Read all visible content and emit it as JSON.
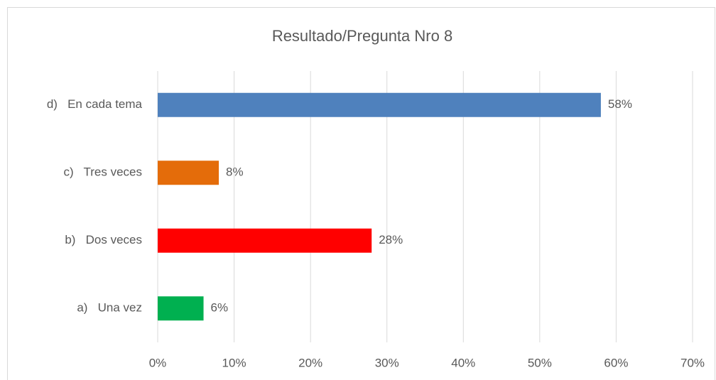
{
  "chart_data": {
    "type": "bar",
    "orientation": "horizontal",
    "title": "Resultado/Pregunta Nro 8",
    "categories": [
      "d)   En cada tema",
      "c)   Tres veces",
      "b)   Dos veces",
      "a)   Una vez"
    ],
    "values": [
      58,
      8,
      28,
      6
    ],
    "value_labels": [
      "58%",
      "8%",
      "28%",
      "6%"
    ],
    "colors": [
      "#4f81bd",
      "#e46c0a",
      "#ff0000",
      "#00b050"
    ],
    "xlim": [
      0,
      70
    ],
    "xticks": [
      {
        "value": 0,
        "label": "0%"
      },
      {
        "value": 10,
        "label": "10%"
      },
      {
        "value": 20,
        "label": "20%"
      },
      {
        "value": 30,
        "label": "30%"
      },
      {
        "value": 40,
        "label": "40%"
      },
      {
        "value": 50,
        "label": "50%"
      },
      {
        "value": 60,
        "label": "60%"
      },
      {
        "value": 70,
        "label": "70%"
      }
    ],
    "grid": true
  }
}
